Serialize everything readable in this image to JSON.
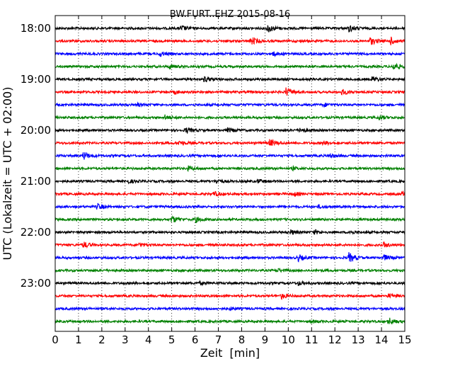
{
  "chart_data": {
    "type": "line",
    "title": "BW.FURT..EHZ 2015-08-16",
    "xlabel": "Zeit  [min]",
    "ylabel": "UTC (Lokalzeit = UTC + 02:00)",
    "xlim": [
      0,
      15
    ],
    "x_ticks": [
      "0",
      "1",
      "2",
      "3",
      "4",
      "5",
      "6",
      "7",
      "8",
      "9",
      "10",
      "11",
      "12",
      "13",
      "14",
      "15"
    ],
    "y_tick_labels": [
      "18:00",
      "19:00",
      "20:00",
      "21:00",
      "22:00",
      "23:00"
    ],
    "grid": "x-dotted",
    "color_cycle": [
      "#000000",
      "#ff0000",
      "#0000ff",
      "#008000"
    ],
    "series": [
      {
        "start": "18:00",
        "events": [
          {
            "t": 5.4,
            "amp": 0.6
          },
          {
            "t": 9.1,
            "amp": 1.0
          },
          {
            "t": 12.6,
            "amp": 0.8
          }
        ]
      },
      {
        "start": "18:15",
        "events": [
          {
            "t": 8.4,
            "amp": 0.9
          },
          {
            "t": 13.5,
            "amp": 0.9
          },
          {
            "t": 14.4,
            "amp": 0.8
          }
        ]
      },
      {
        "start": "18:30",
        "events": [
          {
            "t": 4.5,
            "amp": 0.5
          },
          {
            "t": 9.3,
            "amp": 0.5
          }
        ]
      },
      {
        "start": "18:45",
        "events": [
          {
            "t": 4.9,
            "amp": 0.4
          },
          {
            "t": 14.5,
            "amp": 0.9
          }
        ]
      },
      {
        "start": "19:00",
        "events": [
          {
            "t": 6.4,
            "amp": 0.6
          },
          {
            "t": 13.6,
            "amp": 0.6
          }
        ]
      },
      {
        "start": "19:15",
        "events": [
          {
            "t": 9.9,
            "amp": 1.0
          },
          {
            "t": 12.3,
            "amp": 0.6
          },
          {
            "t": 5.1,
            "amp": 0.4
          }
        ]
      },
      {
        "start": "19:30",
        "events": [
          {
            "t": 11.5,
            "amp": 0.4
          },
          {
            "t": 3.5,
            "amp": 0.3
          }
        ]
      },
      {
        "start": "19:45",
        "events": [
          {
            "t": 4.7,
            "amp": 0.5
          },
          {
            "t": 13.9,
            "amp": 0.5
          }
        ]
      },
      {
        "start": "20:00",
        "events": [
          {
            "t": 5.6,
            "amp": 0.6
          },
          {
            "t": 7.4,
            "amp": 0.5
          },
          {
            "t": 10.5,
            "amp": 0.6
          }
        ]
      },
      {
        "start": "20:15",
        "events": [
          {
            "t": 9.2,
            "amp": 0.8
          },
          {
            "t": 5.3,
            "amp": 0.5
          },
          {
            "t": 11.5,
            "amp": 0.4
          }
        ]
      },
      {
        "start": "20:30",
        "events": [
          {
            "t": 1.2,
            "amp": 0.9
          },
          {
            "t": 11.8,
            "amp": 0.4
          }
        ]
      },
      {
        "start": "20:45",
        "events": [
          {
            "t": 5.7,
            "amp": 0.5
          },
          {
            "t": 10.2,
            "amp": 0.3
          }
        ]
      },
      {
        "start": "21:00",
        "events": [
          {
            "t": 3.1,
            "amp": 0.4
          },
          {
            "t": 6.9,
            "amp": 0.5
          },
          {
            "t": 8.7,
            "amp": 0.4
          }
        ]
      },
      {
        "start": "21:15",
        "events": [
          {
            "t": 6.8,
            "amp": 0.5
          },
          {
            "t": 10.2,
            "amp": 0.5
          },
          {
            "t": 14.9,
            "amp": 0.6
          }
        ]
      },
      {
        "start": "21:30",
        "events": [
          {
            "t": 1.8,
            "amp": 0.7
          },
          {
            "t": 11.3,
            "amp": 0.3
          }
        ]
      },
      {
        "start": "21:45",
        "events": [
          {
            "t": 5.0,
            "amp": 0.8
          },
          {
            "t": 6.0,
            "amp": 0.6
          }
        ]
      },
      {
        "start": "22:00",
        "events": [
          {
            "t": 10.1,
            "amp": 0.5
          },
          {
            "t": 11.1,
            "amp": 0.5
          },
          {
            "t": 12.6,
            "amp": 0.4
          }
        ]
      },
      {
        "start": "22:15",
        "events": [
          {
            "t": 1.2,
            "amp": 0.7
          },
          {
            "t": 3.6,
            "amp": 0.4
          },
          {
            "t": 14.1,
            "amp": 0.5
          }
        ]
      },
      {
        "start": "22:30",
        "events": [
          {
            "t": 10.4,
            "amp": 0.8
          },
          {
            "t": 12.6,
            "amp": 1.1
          },
          {
            "t": 14.1,
            "amp": 0.6
          }
        ]
      },
      {
        "start": "22:45",
        "events": [
          {
            "t": 9.5,
            "amp": 0.4
          }
        ]
      },
      {
        "start": "23:00",
        "events": [
          {
            "t": 10.4,
            "amp": 0.4
          },
          {
            "t": 6.2,
            "amp": 0.3
          }
        ]
      },
      {
        "start": "23:15",
        "events": [
          {
            "t": 9.7,
            "amp": 0.6
          },
          {
            "t": 14.3,
            "amp": 0.4
          }
        ]
      },
      {
        "start": "23:30",
        "events": [
          {
            "t": 7.5,
            "amp": 0.3
          }
        ]
      },
      {
        "start": "23:45",
        "events": [
          {
            "t": 14.3,
            "amp": 0.8
          },
          {
            "t": 11.0,
            "amp": 0.3
          }
        ]
      }
    ]
  }
}
